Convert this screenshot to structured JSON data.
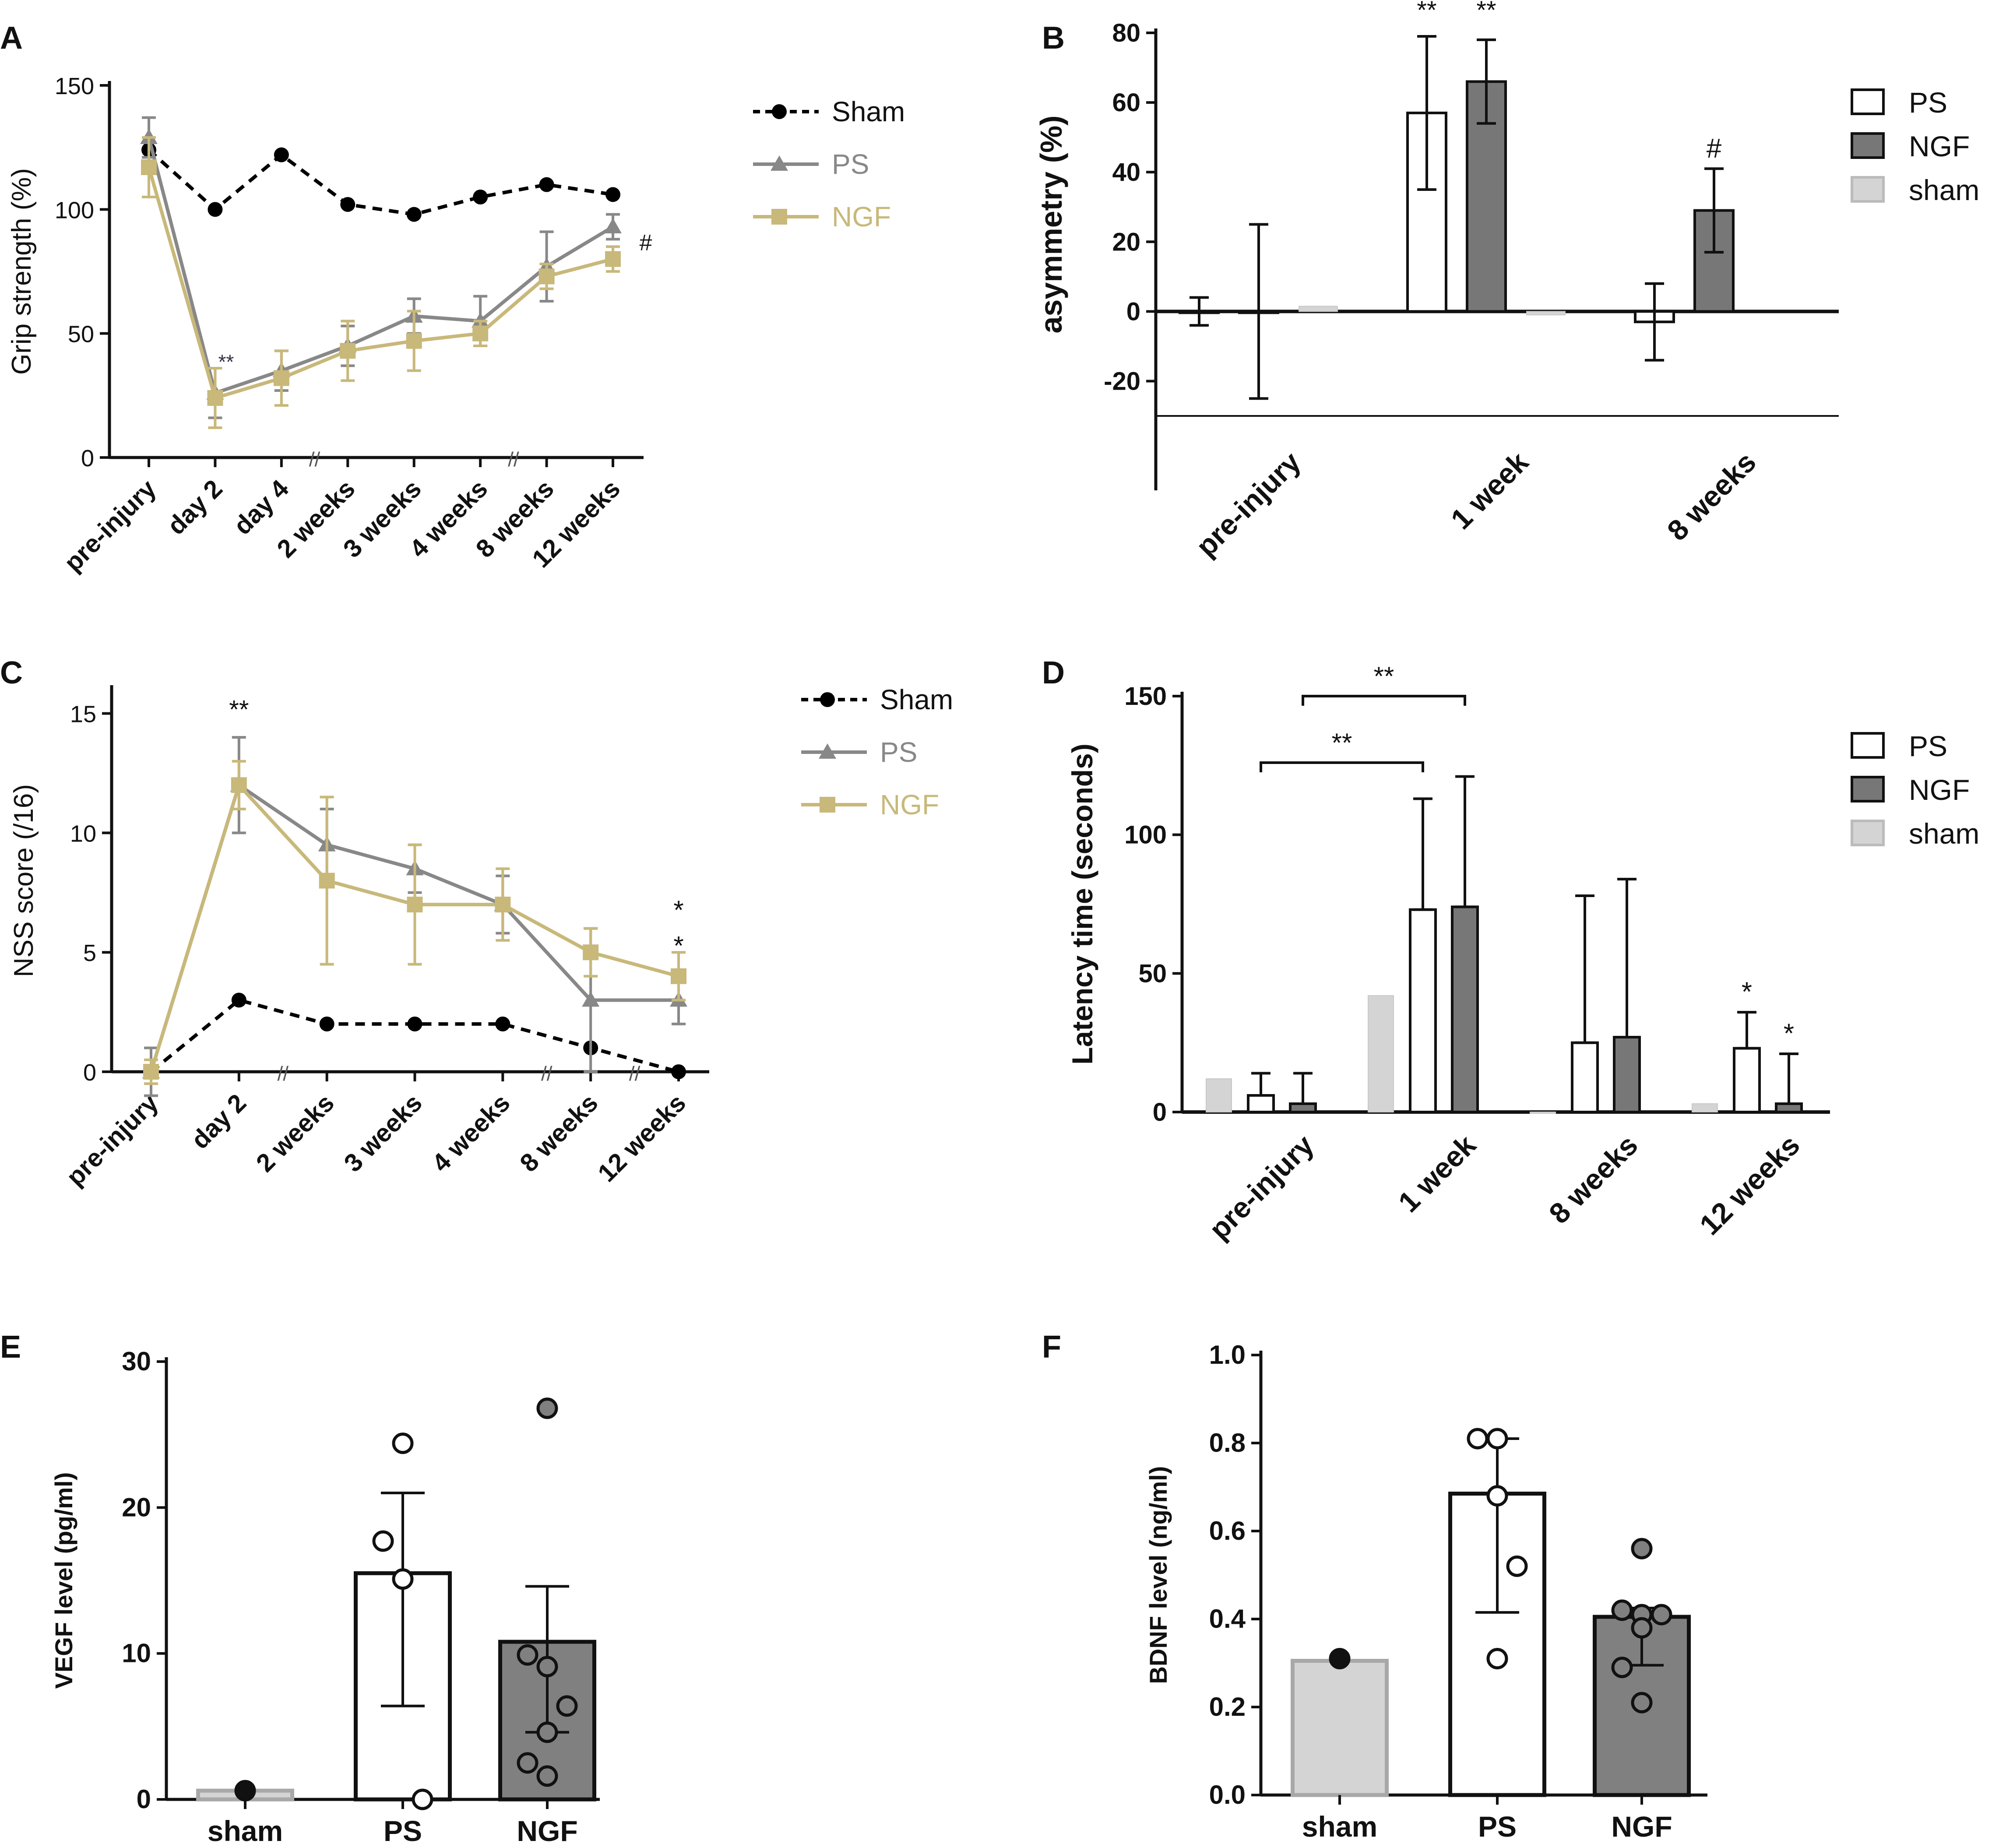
{
  "chart_data": [
    {
      "panel": "A",
      "type": "line",
      "ylabel": "Grip strength (%)",
      "ylim": [
        0,
        150
      ],
      "yticks": [
        "0",
        "50",
        "100",
        "150"
      ],
      "categories": [
        "pre-injury",
        "day 2",
        "day 4",
        "2 weeks",
        "3 weeks",
        "4 weeks",
        "8 weeks",
        "12 weeks"
      ],
      "axis_breaks": [
        "//",
        "//"
      ],
      "series": [
        {
          "name": "Sham",
          "color": "#000000",
          "marker": "circle",
          "dashed": true,
          "values": [
            124,
            100,
            122,
            102,
            98,
            105,
            110,
            106
          ],
          "errors": [
            0,
            0,
            0,
            0,
            0,
            0,
            0,
            0
          ]
        },
        {
          "name": "PS",
          "color": "#888888",
          "marker": "triangle",
          "dashed": false,
          "values": [
            129,
            26,
            35,
            45,
            57,
            55,
            77,
            93
          ],
          "errors": [
            8,
            10,
            8,
            8,
            7,
            10,
            14,
            5
          ]
        },
        {
          "name": "NGF",
          "color": "#C8B87A",
          "marker": "square",
          "dashed": false,
          "values": [
            117,
            24,
            32,
            43,
            47,
            50,
            73,
            80
          ],
          "errors": [
            12,
            12,
            11,
            12,
            12,
            5,
            5,
            5
          ]
        }
      ],
      "annotations": [
        {
          "text": "**",
          "at": "day 2"
        },
        {
          "text": "#",
          "at": "12 weeks"
        }
      ]
    },
    {
      "panel": "B",
      "type": "bar",
      "ylabel": "asymmetry (%)",
      "ylim": [
        -30,
        80
      ],
      "yticks": [
        "-20",
        "0",
        "20",
        "40",
        "60",
        "80"
      ],
      "categories": [
        "pre-injury",
        "1 week",
        "8 weeks"
      ],
      "series": [
        {
          "name": "PS",
          "color": "#ffffff",
          "values": [
            0,
            57,
            -3
          ],
          "errors": [
            4,
            22,
            11
          ]
        },
        {
          "name": "NGF",
          "color": "#777777",
          "values": [
            0,
            66,
            29
          ],
          "errors": [
            25,
            12,
            12
          ]
        },
        {
          "name": "sham",
          "color": "#d4d4d4",
          "values": [
            1.5,
            -1,
            null
          ],
          "errors": [
            0,
            0,
            0
          ]
        }
      ],
      "annotations": [
        {
          "text": "**",
          "at": "1 week PS"
        },
        {
          "text": "**",
          "at": "1 week NGF"
        },
        {
          "text": "#",
          "at": "8 weeks NGF"
        }
      ]
    },
    {
      "panel": "C",
      "type": "line",
      "ylabel": "NSS score (/16)",
      "ylim": [
        0,
        16
      ],
      "yticks": [
        "0",
        "5",
        "10",
        "15"
      ],
      "categories": [
        "pre-injury",
        "day 2",
        "2 weeks",
        "3 weeks",
        "4 weeks",
        "8 weeks",
        "12 weeks"
      ],
      "axis_breaks": [
        "//",
        "//",
        "//"
      ],
      "series": [
        {
          "name": "Sham",
          "color": "#000000",
          "marker": "circle",
          "dashed": true,
          "values": [
            0,
            3,
            2,
            2,
            2,
            1,
            0
          ],
          "errors": [
            0,
            0,
            0,
            0,
            0,
            0,
            0
          ]
        },
        {
          "name": "PS",
          "color": "#888888",
          "marker": "triangle",
          "dashed": false,
          "values": [
            0,
            12,
            9.5,
            8.5,
            7,
            3,
            3
          ],
          "errors": [
            1,
            2,
            1.5,
            1,
            1.2,
            3,
            1
          ]
        },
        {
          "name": "NGF",
          "color": "#C8B87A",
          "marker": "square",
          "dashed": false,
          "values": [
            0,
            12,
            8,
            7,
            7,
            5,
            4
          ],
          "errors": [
            0.5,
            1,
            3.5,
            2.5,
            1.5,
            1,
            1
          ]
        }
      ],
      "annotations": [
        {
          "text": "**",
          "at": "day 2"
        },
        {
          "text": "*",
          "at": "12 weeks top"
        },
        {
          "text": "*",
          "at": "12 weeks bottom"
        }
      ]
    },
    {
      "panel": "D",
      "type": "bar",
      "ylabel": "Latency time (seconds)",
      "ylim": [
        0,
        150
      ],
      "yticks": [
        "0",
        "50",
        "100",
        "150"
      ],
      "categories": [
        "pre-injury",
        "1 week",
        "8 weeks",
        "12 weeks"
      ],
      "series": [
        {
          "name": "PS",
          "color": "#ffffff",
          "values": [
            6,
            73,
            25,
            23
          ],
          "errors": [
            8,
            40,
            53,
            13
          ]
        },
        {
          "name": "NGF",
          "color": "#777777",
          "values": [
            3,
            74,
            27,
            3
          ],
          "errors": [
            11,
            47,
            57,
            18
          ]
        },
        {
          "name": "sham",
          "color": "#d4d4d4",
          "values": [
            12,
            42,
            0,
            3
          ],
          "errors": [
            0,
            0,
            0,
            0
          ]
        }
      ],
      "annotations": [
        {
          "text": "**",
          "at": "pre-injury PS vs 1 week PS"
        },
        {
          "text": "**",
          "at": "pre-injury NGF vs 1 week NGF"
        },
        {
          "text": "*",
          "at": "12 weeks PS"
        },
        {
          "text": "*",
          "at": "12 weeks NGF"
        }
      ]
    },
    {
      "panel": "E",
      "type": "bar",
      "ylabel": "VEGF level (pg/ml)",
      "ylim": [
        0,
        30
      ],
      "yticks": [
        "0",
        "10",
        "20",
        "30"
      ],
      "categories": [
        "sham",
        "PS",
        "NGF"
      ],
      "values": [
        0.6,
        15.5,
        10.8
      ],
      "errors_low": [
        0,
        9.1,
        6.2
      ],
      "errors_high": [
        0,
        5.5,
        3.8
      ],
      "colors": [
        "#d4d4d4",
        "#ffffff",
        "#808080"
      ],
      "points": [
        [
          0.6
        ],
        [
          24.4,
          17.7,
          15.1,
          0
        ],
        [
          26.8,
          9.9,
          9.1,
          6.4,
          4.6,
          2.5,
          1.6
        ]
      ]
    },
    {
      "panel": "F",
      "type": "bar",
      "ylabel": "BDNF level (ng/ml)",
      "ylim": [
        0,
        1.0
      ],
      "yticks": [
        "0.0",
        "0.2",
        "0.4",
        "0.6",
        "0.8",
        "1.0"
      ],
      "categories": [
        "sham",
        "PS",
        "NGF"
      ],
      "values": [
        0.305,
        0.685,
        0.405
      ],
      "errors_low": [
        0,
        0.27,
        0.11
      ],
      "errors_high": [
        0,
        0.125,
        0.02
      ],
      "colors": [
        "#d4d4d4",
        "#ffffff",
        "#808080"
      ],
      "points": [
        [
          0.31
        ],
        [
          0.81,
          0.81,
          0.68,
          0.52,
          0.31
        ],
        [
          0.56,
          0.42,
          0.41,
          0.41,
          0.38,
          0.29,
          0.21
        ]
      ]
    }
  ]
}
